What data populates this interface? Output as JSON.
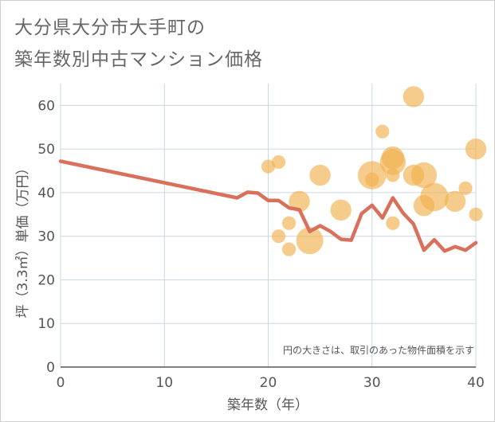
{
  "chart_data": {
    "type": "scatter",
    "title": [
      "大分県大分市大手町の",
      "築年数別中古マンション価格"
    ],
    "xlabel": "築年数（年）",
    "ylabel": "坪（3.3㎡）単価（万円）",
    "xlim": [
      0,
      40
    ],
    "ylim": [
      0,
      65
    ],
    "xticks": [
      0,
      10,
      20,
      30,
      40
    ],
    "yticks": [
      0,
      10,
      20,
      30,
      40,
      50,
      60
    ],
    "grid": true,
    "note": "円の大きさは、取引のあった物件面積を示す",
    "colors": {
      "line": "#d9705c",
      "bubble": "#f0b14d",
      "grid": "#c9d7e6"
    },
    "line_series": {
      "x": [
        0,
        17,
        18,
        19,
        20,
        21,
        22,
        23,
        24,
        25,
        26,
        27,
        28,
        29,
        30,
        31,
        32,
        33,
        34,
        35,
        36,
        37,
        38,
        39,
        40
      ],
      "y": [
        47.2,
        38.8,
        40.1,
        39.9,
        38.2,
        38.2,
        36.5,
        36.1,
        31.1,
        32.4,
        31.1,
        29.3,
        29.1,
        35.2,
        37.1,
        34.2,
        38.8,
        35.3,
        32.8,
        26.8,
        29.2,
        26.6,
        27.6,
        26.8,
        28.5
      ]
    },
    "bubbles": [
      {
        "x": 20,
        "y": 46,
        "size": 1
      },
      {
        "x": 21,
        "y": 47,
        "size": 1
      },
      {
        "x": 21,
        "y": 30,
        "size": 1
      },
      {
        "x": 22,
        "y": 33,
        "size": 1
      },
      {
        "x": 22,
        "y": 27,
        "size": 1
      },
      {
        "x": 23,
        "y": 38,
        "size": 4
      },
      {
        "x": 24,
        "y": 29,
        "size": 8
      },
      {
        "x": 25,
        "y": 44,
        "size": 4
      },
      {
        "x": 27,
        "y": 36,
        "size": 4
      },
      {
        "x": 30,
        "y": 44,
        "size": 9
      },
      {
        "x": 30,
        "y": 43,
        "size": 1
      },
      {
        "x": 31,
        "y": 54,
        "size": 1
      },
      {
        "x": 32,
        "y": 47,
        "size": 7
      },
      {
        "x": 32,
        "y": 48,
        "size": 5
      },
      {
        "x": 32,
        "y": 44,
        "size": 1
      },
      {
        "x": 32,
        "y": 33,
        "size": 1
      },
      {
        "x": 34,
        "y": 62,
        "size": 4
      },
      {
        "x": 34,
        "y": 44,
        "size": 4
      },
      {
        "x": 35,
        "y": 44,
        "size": 7
      },
      {
        "x": 35,
        "y": 37,
        "size": 4
      },
      {
        "x": 36,
        "y": 39,
        "size": 9
      },
      {
        "x": 38,
        "y": 38,
        "size": 4
      },
      {
        "x": 39,
        "y": 41,
        "size": 1
      },
      {
        "x": 40,
        "y": 50,
        "size": 4
      },
      {
        "x": 40,
        "y": 35,
        "size": 1
      }
    ]
  }
}
